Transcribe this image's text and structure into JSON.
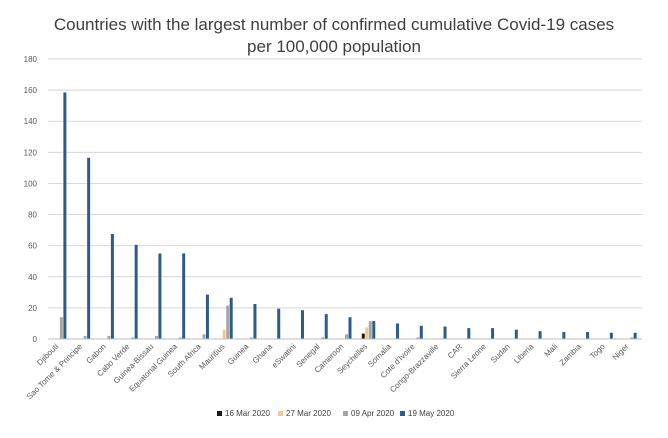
{
  "chart_data": {
    "type": "bar",
    "title_line1": "Countries with the largest number of confirmed cumulative Covid-19 cases",
    "title_line2": "per 100,000 population",
    "xlabel": "",
    "ylabel": "",
    "ylim": [
      0,
      180
    ],
    "yticks": [
      "0",
      "20",
      "40",
      "60",
      "80",
      "100",
      "120",
      "140",
      "160",
      "180"
    ],
    "grid": true,
    "legend_position": "bottom",
    "categories": [
      "Djibouti",
      "Sao Tome & Principe",
      "Gabon",
      "Cabo Verde",
      "Guinea-Bissau",
      "Equatorial Guinea",
      "South Africa",
      "Mauritius",
      "Guinea",
      "Ghana",
      "eSwatini",
      "Senegal",
      "Cameroon",
      "Seychelles",
      "Somalia",
      "Cote d'Ivoire",
      "Congo-Brazzaville",
      "CAR",
      "Sierra Leone",
      "Sudan",
      "Liberia",
      "Mali",
      "Zambia",
      "Togo",
      "Niger"
    ],
    "series": [
      {
        "name": "16 Mar 2020",
        "color": "#1a1a1a",
        "values": [
          0,
          0,
          0,
          0,
          0,
          0,
          0,
          0,
          0,
          0,
          0,
          0,
          0,
          3.5,
          0,
          0,
          0,
          0,
          0,
          0,
          0,
          0,
          0,
          0,
          0
        ]
      },
      {
        "name": "27 Mar 2020",
        "color": "#f2c88e",
        "values": [
          0,
          0,
          0,
          0,
          0,
          0,
          0,
          6,
          0,
          0,
          0,
          0,
          0,
          7.5,
          0,
          0,
          0,
          0,
          0,
          0,
          0,
          0,
          0,
          0,
          0
        ]
      },
      {
        "name": "09 Apr 2020",
        "color": "#a6a6a6",
        "values": [
          14,
          2,
          2,
          1,
          2,
          1,
          3,
          21.5,
          1,
          0,
          0,
          1,
          3,
          11.5,
          0,
          1,
          0,
          0,
          0,
          0,
          0,
          0,
          0,
          0,
          1
        ]
      },
      {
        "name": "19 May 2020",
        "color": "#2e5c8a",
        "values": [
          158.5,
          116.5,
          67.5,
          60.5,
          55,
          55,
          28.5,
          26.5,
          22.5,
          19.5,
          18.5,
          16,
          14,
          11.5,
          10,
          8.5,
          8,
          7,
          7,
          6,
          5,
          4.5,
          4.5,
          4,
          4
        ]
      }
    ]
  }
}
